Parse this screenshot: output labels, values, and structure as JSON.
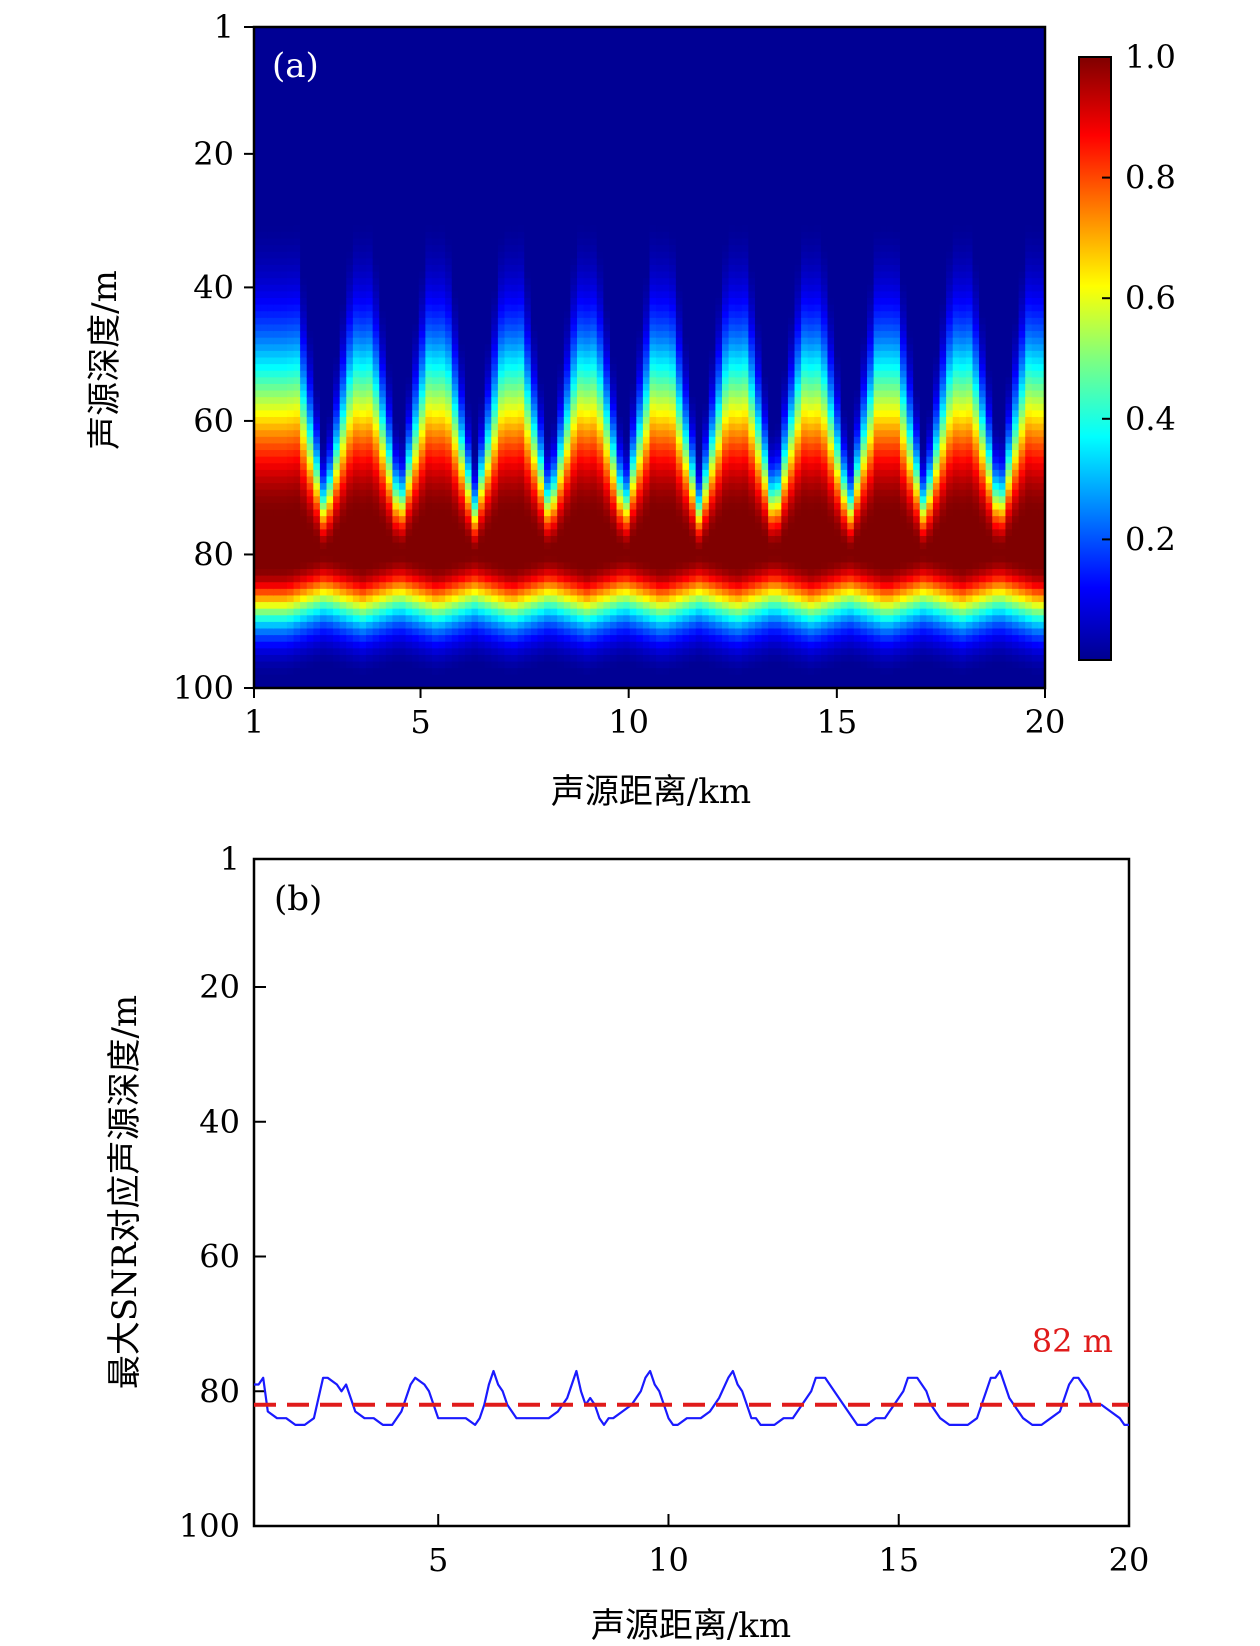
{
  "chart_data": [
    {
      "panel_label": "(a)",
      "type": "heatmap",
      "xlabel": "声源距离/km",
      "ylabel": "声源深度/m",
      "x_ticks": [
        "1",
        "5",
        "10",
        "15",
        "20"
      ],
      "y_ticks": [
        "1",
        "20",
        "40",
        "60",
        "80",
        "100"
      ],
      "xlim": [
        1,
        20
      ],
      "ylim": [
        1,
        100
      ],
      "y_inverted": true,
      "colormap": "jet",
      "colorbar_ticks": [
        "0.2",
        "0.4",
        "0.6",
        "0.8",
        "1.0"
      ],
      "colorbar_range": [
        0,
        1
      ],
      "peak_ranges_km": [
        2.7,
        4.5,
        6.3,
        8.1,
        9.9,
        11.7,
        13.5,
        15.3,
        17.1,
        18.9
      ],
      "max_depth_m": 82
    },
    {
      "panel_label": "(b)",
      "type": "line",
      "xlabel": "声源距离/km",
      "ylabel": "最大SNR对应声源深度/m",
      "x_ticks": [
        "5",
        "10",
        "15",
        "20"
      ],
      "y_ticks": [
        "1",
        "20",
        "40",
        "60",
        "80",
        "100"
      ],
      "xlim": [
        1,
        20
      ],
      "ylim": [
        1,
        100
      ],
      "y_inverted": true,
      "series": [
        {
          "color": "#1a1aff",
          "x": [
            1.0,
            1.1,
            1.2,
            1.3,
            1.5,
            1.7,
            1.9,
            2.1,
            2.3,
            2.4,
            2.5,
            2.6,
            2.8,
            2.9,
            3.0,
            3.1,
            3.2,
            3.4,
            3.6,
            3.8,
            4.0,
            4.2,
            4.3,
            4.4,
            4.5,
            4.7,
            4.8,
            5.0,
            5.2,
            5.4,
            5.6,
            5.8,
            5.9,
            6.0,
            6.1,
            6.2,
            6.3,
            6.4,
            6.5,
            6.6,
            6.7,
            6.8,
            6.9,
            7.0,
            7.2,
            7.4,
            7.6,
            7.8,
            7.9,
            8.0,
            8.1,
            8.2,
            8.3,
            8.4,
            8.5,
            8.6,
            8.7,
            8.8,
            9.0,
            9.2,
            9.4,
            9.5,
            9.6,
            9.7,
            9.8,
            9.9,
            10.0,
            10.1,
            10.2,
            10.4,
            10.5,
            10.7,
            10.9,
            11.1,
            11.3,
            11.4,
            11.5,
            11.6,
            11.7,
            11.8,
            11.9,
            12.0,
            12.1,
            12.3,
            12.5,
            12.7,
            12.9,
            13.1,
            13.2,
            13.3,
            13.4,
            13.5,
            13.6,
            13.7,
            13.8,
            13.9,
            14.1,
            14.3,
            14.5,
            14.7,
            14.9,
            15.0,
            15.1,
            15.2,
            15.3,
            15.4,
            15.5,
            15.6,
            15.7,
            15.9,
            16.1,
            16.3,
            16.5,
            16.7,
            16.8,
            16.9,
            17.0,
            17.1,
            17.2,
            17.3,
            17.4,
            17.5,
            17.6,
            17.7,
            17.9,
            18.1,
            18.3,
            18.5,
            18.6,
            18.7,
            18.8,
            18.9,
            19.0,
            19.1,
            19.2,
            19.3,
            19.4,
            19.6,
            19.8,
            19.9,
            20.0
          ],
          "y": [
            79,
            79,
            78,
            83,
            84,
            84,
            85,
            85,
            84,
            81,
            78,
            78,
            79,
            80,
            79,
            81,
            83,
            84,
            84,
            85,
            85,
            83,
            81,
            79,
            78,
            79,
            80,
            84,
            84,
            84,
            84,
            85,
            84,
            82,
            79,
            77,
            79,
            80,
            82,
            83,
            84,
            84,
            84,
            84,
            84,
            84,
            83,
            81,
            79,
            77,
            80,
            82,
            81,
            82,
            84,
            85,
            84,
            84,
            83,
            82,
            80,
            78,
            77,
            79,
            80,
            82,
            84,
            85,
            85,
            84,
            84,
            84,
            83,
            81,
            78,
            77,
            79,
            80,
            82,
            84,
            84,
            85,
            85,
            85,
            84,
            84,
            82,
            80,
            78,
            78,
            78,
            79,
            80,
            81,
            82,
            83,
            85,
            85,
            84,
            84,
            82,
            81,
            80,
            78,
            78,
            78,
            79,
            80,
            82,
            84,
            85,
            85,
            85,
            84,
            82,
            80,
            78,
            78,
            77,
            79,
            81,
            82,
            83,
            84,
            85,
            85,
            84,
            83,
            81,
            79,
            78,
            78,
            79,
            80,
            82,
            82,
            82,
            83,
            84,
            85,
            85
          ]
        },
        {
          "color": "#e01b1b",
          "style": "dashed",
          "x": [
            1,
            20
          ],
          "y": [
            82,
            82
          ]
        }
      ],
      "annotations": [
        {
          "text": "82 m",
          "color": "#e01b1b"
        }
      ]
    }
  ]
}
